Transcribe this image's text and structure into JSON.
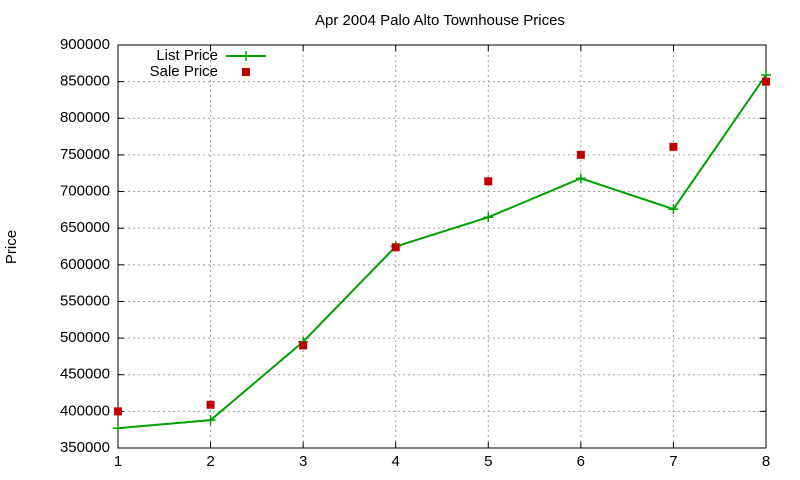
{
  "chart_data": {
    "type": "line",
    "title": "Apr 2004 Palo Alto Townhouse Prices",
    "ylabel": "Price",
    "x": [
      1,
      2,
      3,
      4,
      5,
      6,
      7,
      8
    ],
    "series": [
      {
        "name": "List Price",
        "color": "#00a000",
        "style": "lines+markers",
        "values": [
          377000,
          388000,
          495000,
          625000,
          665000,
          718000,
          676000,
          859000
        ]
      },
      {
        "name": "Sale Price",
        "color": "#c00000",
        "style": "markers",
        "values": [
          400000,
          409000,
          490000,
          624000,
          714000,
          750000,
          761000,
          850000
        ]
      }
    ],
    "xlim": [
      1,
      8
    ],
    "xticks": [
      1,
      2,
      3,
      4,
      5,
      6,
      7,
      8
    ],
    "ylim": [
      350000,
      900000
    ],
    "yticks": [
      350000,
      400000,
      450000,
      500000,
      550000,
      600000,
      650000,
      700000,
      750000,
      800000,
      850000,
      900000
    ],
    "grid": true,
    "legend": "top-left"
  }
}
